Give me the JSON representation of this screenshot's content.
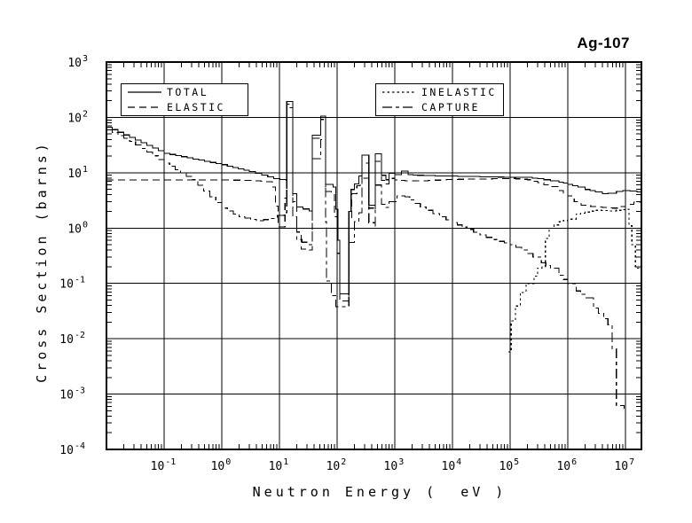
{
  "title": "Ag-107",
  "colors": {
    "foreground": "#000000",
    "background": "#ffffff"
  },
  "axes": {
    "xlabel": "Neutron Energy (  eV )",
    "ylabel": "Cross Section (barns)",
    "x_decades": [
      -1,
      0,
      1,
      2,
      3,
      4,
      5,
      6,
      7
    ],
    "y_decades": [
      3,
      2,
      1,
      0,
      -1,
      -2,
      -3,
      -4
    ],
    "x_log_range": [
      -2,
      7.28
    ],
    "y_log_range": [
      -4,
      3
    ]
  },
  "legend": [
    {
      "label": "TOTAL",
      "style": "solid"
    },
    {
      "label": "ELASTIC",
      "style": "dash"
    },
    {
      "label": "INELASTIC",
      "style": "dot"
    },
    {
      "label": "CAPTURE",
      "style": "dashdot"
    }
  ],
  "chart_data": {
    "type": "line",
    "title": "Ag-107",
    "xlabel": "Neutron Energy ( eV )",
    "ylabel": "Cross Section (barns)",
    "x_scale": "log",
    "y_scale": "log",
    "xlim": [
      0.01,
      19000000
    ],
    "ylim": [
      0.0001,
      1000
    ],
    "grid": true,
    "legend_position": "top-inside",
    "series": [
      {
        "name": "TOTAL",
        "style": "solid",
        "points": [
          [
            0.01,
            67
          ],
          [
            0.1,
            22.5
          ],
          [
            1,
            14
          ],
          [
            3,
            10.5
          ],
          [
            8,
            7.8
          ],
          [
            13,
            7.3
          ],
          [
            13.4,
            195
          ],
          [
            17,
            195
          ],
          [
            17,
            4.2
          ],
          [
            20,
            2.4
          ],
          [
            33,
            2.05
          ],
          [
            37,
            48
          ],
          [
            52,
            48
          ],
          [
            52,
            105
          ],
          [
            63,
            105
          ],
          [
            63,
            6.2
          ],
          [
            85,
            5.5
          ],
          [
            95,
            2.2
          ],
          [
            103,
            0.6
          ],
          [
            111,
            0.065
          ],
          [
            143,
            0.065
          ],
          [
            160,
            2.0
          ],
          [
            175,
            5.0
          ],
          [
            200,
            6.3
          ],
          [
            240,
            8.7
          ],
          [
            270,
            20.7
          ],
          [
            356,
            20.7
          ],
          [
            356,
            2.6
          ],
          [
            459,
            2.4
          ],
          [
            459,
            22
          ],
          [
            589,
            22
          ],
          [
            589,
            9.0
          ],
          [
            700,
            7.5
          ],
          [
            800,
            9.8
          ],
          [
            1000,
            9.3
          ],
          [
            1300,
            10.8
          ],
          [
            1700,
            9.2
          ],
          [
            2500,
            9.0
          ],
          [
            5000,
            8.8
          ],
          [
            10000,
            8.7
          ],
          [
            30000,
            8.5
          ],
          [
            100000,
            8.3
          ],
          [
            200000,
            8.25
          ],
          [
            300000,
            7.8
          ],
          [
            500000,
            7.2
          ],
          [
            700000,
            6.8
          ],
          [
            1000000,
            6.2
          ],
          [
            1500000,
            5.5
          ],
          [
            2000000,
            5.0
          ],
          [
            3000000,
            4.5
          ],
          [
            4000000,
            4.2
          ],
          [
            5000000,
            4.25
          ],
          [
            7000000,
            4.6
          ],
          [
            9000000,
            4.8
          ],
          [
            12000000,
            4.7
          ],
          [
            16000000,
            4.5
          ],
          [
            19000000,
            4.35
          ]
        ]
      },
      {
        "name": "ELASTIC",
        "style": "dash",
        "points": [
          [
            0.01,
            7.4
          ],
          [
            1,
            7.4
          ],
          [
            3,
            7.3
          ],
          [
            6,
            6.9
          ],
          [
            7.5,
            5.5
          ],
          [
            8.5,
            2.5
          ],
          [
            9.5,
            1.05
          ],
          [
            11.5,
            1.05
          ],
          [
            12.5,
            3.5
          ],
          [
            13.4,
            175
          ],
          [
            17,
            175
          ],
          [
            17,
            3.0
          ],
          [
            20,
            0.85
          ],
          [
            24,
            0.42
          ],
          [
            33,
            0.4
          ],
          [
            37,
            42
          ],
          [
            52,
            42
          ],
          [
            52,
            92
          ],
          [
            63,
            92
          ],
          [
            63,
            4.6
          ],
          [
            80,
            4.2
          ],
          [
            90,
            1.6
          ],
          [
            100,
            0.35
          ],
          [
            111,
            0.048
          ],
          [
            143,
            0.048
          ],
          [
            160,
            1.5
          ],
          [
            180,
            4.2
          ],
          [
            220,
            5.8
          ],
          [
            250,
            6.5
          ],
          [
            270,
            15
          ],
          [
            356,
            15
          ],
          [
            356,
            2.3
          ],
          [
            459,
            2.1
          ],
          [
            459,
            16
          ],
          [
            589,
            16
          ],
          [
            589,
            7.3
          ],
          [
            700,
            6.3
          ],
          [
            800,
            7.9
          ],
          [
            1000,
            7.4
          ],
          [
            1500,
            7.1
          ],
          [
            3000,
            7.2
          ],
          [
            10000,
            7.6
          ],
          [
            50000,
            7.8
          ],
          [
            100000,
            7.9
          ],
          [
            200000,
            7.5
          ],
          [
            300000,
            6.6
          ],
          [
            500000,
            5.6
          ],
          [
            700000,
            4.8
          ],
          [
            1000000,
            3.8
          ],
          [
            1300000,
            3.0
          ],
          [
            1700000,
            2.6
          ],
          [
            2500000,
            2.45
          ],
          [
            4000000,
            2.35
          ],
          [
            6000000,
            2.3
          ],
          [
            8000000,
            2.45
          ],
          [
            10000000,
            2.7
          ],
          [
            14000000,
            2.95
          ],
          [
            19000000,
            2.8
          ]
        ]
      },
      {
        "name": "INELASTIC",
        "style": "dot",
        "points": [
          [
            93000,
            0.0058
          ],
          [
            100000,
            0.0058
          ],
          [
            105000,
            0.021
          ],
          [
            125000,
            0.039
          ],
          [
            150000,
            0.069
          ],
          [
            190000,
            0.1
          ],
          [
            260000,
            0.135
          ],
          [
            300000,
            0.19
          ],
          [
            360000,
            0.2
          ],
          [
            410000,
            0.65
          ],
          [
            480000,
            1.0
          ],
          [
            700000,
            1.3
          ],
          [
            1000000,
            1.45
          ],
          [
            1400000,
            1.8
          ],
          [
            2000000,
            1.95
          ],
          [
            3000000,
            2.1
          ],
          [
            5000000,
            2.05
          ],
          [
            7000000,
            2.1
          ],
          [
            9000000,
            2.15
          ],
          [
            10500000,
            2.2
          ],
          [
            11500000,
            1.1
          ],
          [
            13000000,
            0.5
          ],
          [
            15000000,
            0.19
          ],
          [
            19000000,
            0.17
          ]
        ]
      },
      {
        "name": "CAPTURE",
        "style": "dashdot",
        "points": [
          [
            0.01,
            60
          ],
          [
            0.0253,
            37
          ],
          [
            0.1,
            15
          ],
          [
            0.3,
            7.5
          ],
          [
            1,
            2.3
          ],
          [
            2,
            1.6
          ],
          [
            4,
            1.35
          ],
          [
            7,
            1.5
          ],
          [
            12,
            1.9
          ],
          [
            13.4,
            150
          ],
          [
            17,
            150
          ],
          [
            17,
            1.6
          ],
          [
            20,
            0.62
          ],
          [
            30,
            0.5
          ],
          [
            37,
            18
          ],
          [
            52,
            18
          ],
          [
            52,
            40
          ],
          [
            63,
            40
          ],
          [
            63,
            1.3
          ],
          [
            65,
            0.11
          ],
          [
            80,
            0.06
          ],
          [
            95,
            0.038
          ],
          [
            143,
            0.038
          ],
          [
            160,
            0.55
          ],
          [
            200,
            1.3
          ],
          [
            240,
            1.9
          ],
          [
            270,
            8
          ],
          [
            356,
            8
          ],
          [
            356,
            1.25
          ],
          [
            459,
            1.05
          ],
          [
            459,
            6
          ],
          [
            589,
            6
          ],
          [
            589,
            2.7
          ],
          [
            700,
            2.35
          ],
          [
            800,
            3.0
          ],
          [
            1100,
            3.8
          ],
          [
            1500,
            3.7
          ],
          [
            2200,
            2.8
          ],
          [
            3500,
            2.1
          ],
          [
            6000,
            1.6
          ],
          [
            10000,
            1.25
          ],
          [
            18000,
            0.95
          ],
          [
            30000,
            0.75
          ],
          [
            50000,
            0.62
          ],
          [
            100000,
            0.5
          ],
          [
            160000,
            0.4
          ],
          [
            250000,
            0.3
          ],
          [
            350000,
            0.235
          ],
          [
            500000,
            0.19
          ],
          [
            700000,
            0.14
          ],
          [
            1000000,
            0.1
          ],
          [
            1400000,
            0.073
          ],
          [
            2000000,
            0.055
          ],
          [
            2800000,
            0.036
          ],
          [
            4200000,
            0.023
          ],
          [
            5000000,
            0.018
          ],
          [
            5900000,
            0.0066
          ],
          [
            7000000,
            0.00062
          ],
          [
            9500000,
            0.00055
          ]
        ]
      }
    ]
  }
}
